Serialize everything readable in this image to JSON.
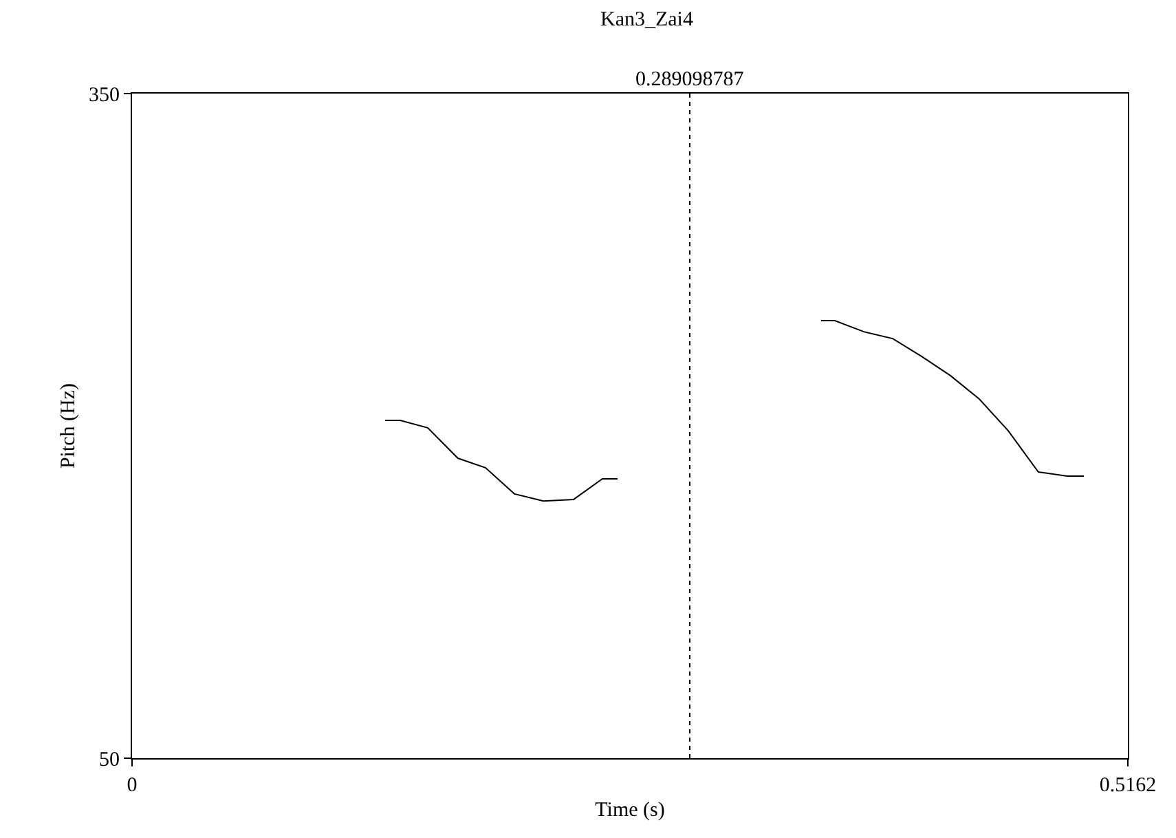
{
  "chart_data": {
    "type": "line",
    "title": "Kan3_Zai4",
    "xlabel": "Time (s)",
    "ylabel": "Pitch (Hz)",
    "x": [
      0.1312,
      0.139,
      0.1533,
      0.1689,
      0.1832,
      0.1982,
      0.2132,
      0.2289,
      0.2438,
      0.2517,
      0.3,
      0.3572,
      0.3643,
      0.3793,
      0.3943,
      0.4092,
      0.4242,
      0.4392,
      0.4542,
      0.4698,
      0.4848,
      0.4934
    ],
    "series": [
      {
        "color": "#000000",
        "values": [
          202.5,
          202.5,
          199.1,
          185.4,
          181.1,
          169.3,
          166.1,
          166.8,
          176.1,
          176.1,
          null,
          247.5,
          247.5,
          242.5,
          239.4,
          231.4,
          222.7,
          212.1,
          197.8,
          179.2,
          177.3,
          177.3
        ]
      }
    ],
    "xlim": [
      0,
      0.5162
    ],
    "xticks": [
      0,
      0.5162
    ],
    "ylim": [
      50,
      350
    ],
    "yticks": [
      50,
      350
    ],
    "ref_lines": [
      {
        "axis": "x",
        "value": 0.289098787,
        "label": "0.289098787",
        "line_style": "dotted",
        "color": "#000000"
      }
    ],
    "marker": "none",
    "line_style": "solid"
  }
}
